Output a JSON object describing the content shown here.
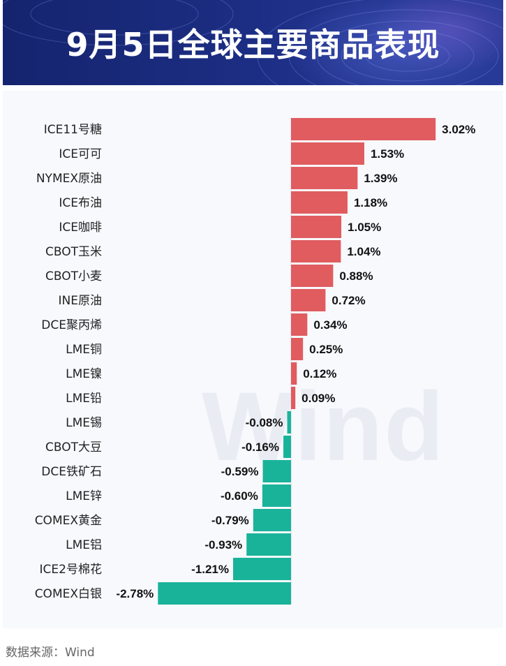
{
  "header": {
    "title": "9月5日全球主要商品表现"
  },
  "watermark": "Wind",
  "footer": {
    "source": "数据来源：Wind"
  },
  "colors": {
    "positive": "#e05c5f",
    "negative": "#19b39a",
    "banner": "#1d2f86"
  },
  "chart_data": {
    "type": "bar",
    "orientation": "horizontal",
    "unit": "%",
    "categories": [
      "ICE11号糖",
      "ICE可可",
      "NYMEX原油",
      "ICE布油",
      "ICE咖啡",
      "CBOT玉米",
      "CBOT小麦",
      "INE原油",
      "DCE聚丙烯",
      "LME铜",
      "LME镍",
      "LME铅",
      "LME锡",
      "CBOT大豆",
      "DCE铁矿石",
      "LME锌",
      "COMEX黄金",
      "LME铝",
      "ICE2号棉花",
      "COMEX白银"
    ],
    "values": [
      3.02,
      1.53,
      1.39,
      1.18,
      1.05,
      1.04,
      0.88,
      0.72,
      0.34,
      0.25,
      0.12,
      0.09,
      -0.08,
      -0.16,
      -0.59,
      -0.6,
      -0.79,
      -0.93,
      -1.21,
      -2.78
    ],
    "labels": [
      "3.02%",
      "1.53%",
      "1.39%",
      "1.18%",
      "1.05%",
      "1.04%",
      "0.88%",
      "0.72%",
      "0.34%",
      "0.25%",
      "0.12%",
      "0.09%",
      "-0.08%",
      "-0.16%",
      "-0.59%",
      "-0.60%",
      "-0.79%",
      "-0.93%",
      "-1.21%",
      "-2.78%"
    ]
  }
}
